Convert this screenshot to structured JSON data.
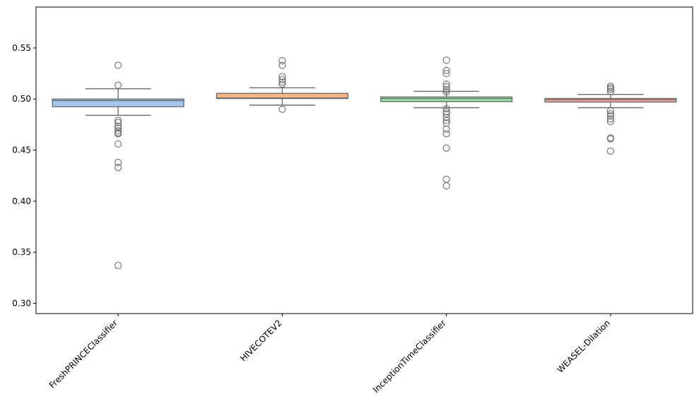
{
  "chart_data": {
    "type": "box",
    "title": "",
    "xlabel": "",
    "ylabel": "",
    "ylim": [
      0.29,
      0.59
    ],
    "yticks": [
      "0.30",
      "0.35",
      "0.40",
      "0.45",
      "0.50",
      "0.55"
    ],
    "grid": false,
    "categories": [
      "FreshPRINCEClassifier",
      "HIVECOTEV2",
      "InceptionTimeClassifier",
      "WEASEL-Dilation"
    ],
    "boxes": [
      {
        "name": "FreshPRINCEClassifier",
        "color": "#a1c9f4",
        "whisker_low": 0.484,
        "q1": 0.4925,
        "median": 0.4985,
        "q3": 0.5,
        "whisker_high": 0.51,
        "fliers": [
          0.533,
          0.5135,
          0.479,
          0.477,
          0.4735,
          0.4715,
          0.469,
          0.467,
          0.466,
          0.456,
          0.438,
          0.433,
          0.337
        ]
      },
      {
        "name": "HIVECOTEV2",
        "color": "#ffb482",
        "whisker_low": 0.494,
        "q1": 0.5005,
        "median": 0.501,
        "q3": 0.5055,
        "whisker_high": 0.511,
        "fliers": [
          0.5375,
          0.533,
          0.522,
          0.519,
          0.5165,
          0.5145,
          0.49
        ]
      },
      {
        "name": "InceptionTimeClassifier",
        "color": "#8de5a1",
        "whisker_low": 0.4915,
        "q1": 0.4975,
        "median": 0.5005,
        "q3": 0.502,
        "whisker_high": 0.5075,
        "fliers": [
          0.538,
          0.528,
          0.525,
          0.5145,
          0.512,
          0.509,
          0.507,
          0.4905,
          0.4875,
          0.4855,
          0.482,
          0.479,
          0.4765,
          0.4705,
          0.466,
          0.452,
          0.4215,
          0.415
        ]
      },
      {
        "name": "WEASEL-Dilation",
        "color": "#ff9f9b",
        "whisker_low": 0.4915,
        "q1": 0.497,
        "median": 0.4995,
        "q3": 0.5005,
        "whisker_high": 0.5045,
        "fliers": [
          0.5125,
          0.511,
          0.5095,
          0.5075,
          0.4885,
          0.4855,
          0.4835,
          0.4805,
          0.478,
          0.462,
          0.461,
          0.449
        ]
      }
    ]
  }
}
